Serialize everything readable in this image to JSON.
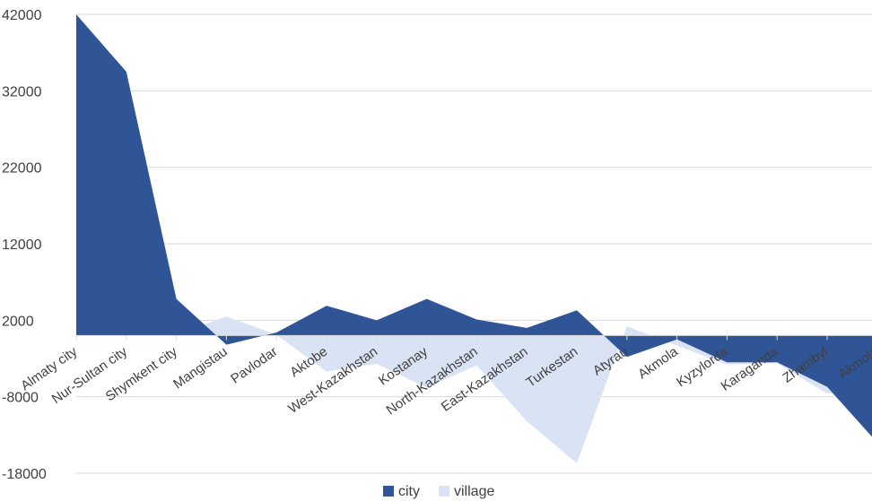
{
  "chart_data": {
    "type": "area",
    "title": "",
    "xlabel": "",
    "ylabel": "",
    "ylim": [
      -18000,
      42000
    ],
    "yticks": [
      42000,
      32000,
      22000,
      12000,
      2000,
      -8000,
      -18000
    ],
    "grid": true,
    "legend_position": "bottom",
    "categories": [
      "Almaty city",
      "Nur-Sultan city",
      "Shymkent city",
      "Mangistau",
      "Pavlodar",
      "Aktobe",
      "West-Kazakhstan",
      "Kostanay",
      "North-Kazakhstan",
      "East-Kazakhstan",
      "Turkestan",
      "Atyrau",
      "Akmola",
      "Kyzylorda",
      "Karaganda",
      "Zhambyl",
      "Akmola"
    ],
    "series": [
      {
        "name": "city",
        "color": "#2f5597",
        "values": [
          42000,
          34500,
          4800,
          -1200,
          400,
          3900,
          2000,
          4800,
          2100,
          1000,
          3300,
          -2800,
          -500,
          -3500,
          -3500,
          -6700,
          -14000
        ]
      },
      {
        "name": "village",
        "color": "#dae3f3",
        "values": [
          100,
          100,
          200,
          2500,
          100,
          -4700,
          -3700,
          -6800,
          -3900,
          -11200,
          -16700,
          1200,
          -1300,
          -3800,
          -3600,
          -7600,
          -6700
        ]
      }
    ]
  }
}
